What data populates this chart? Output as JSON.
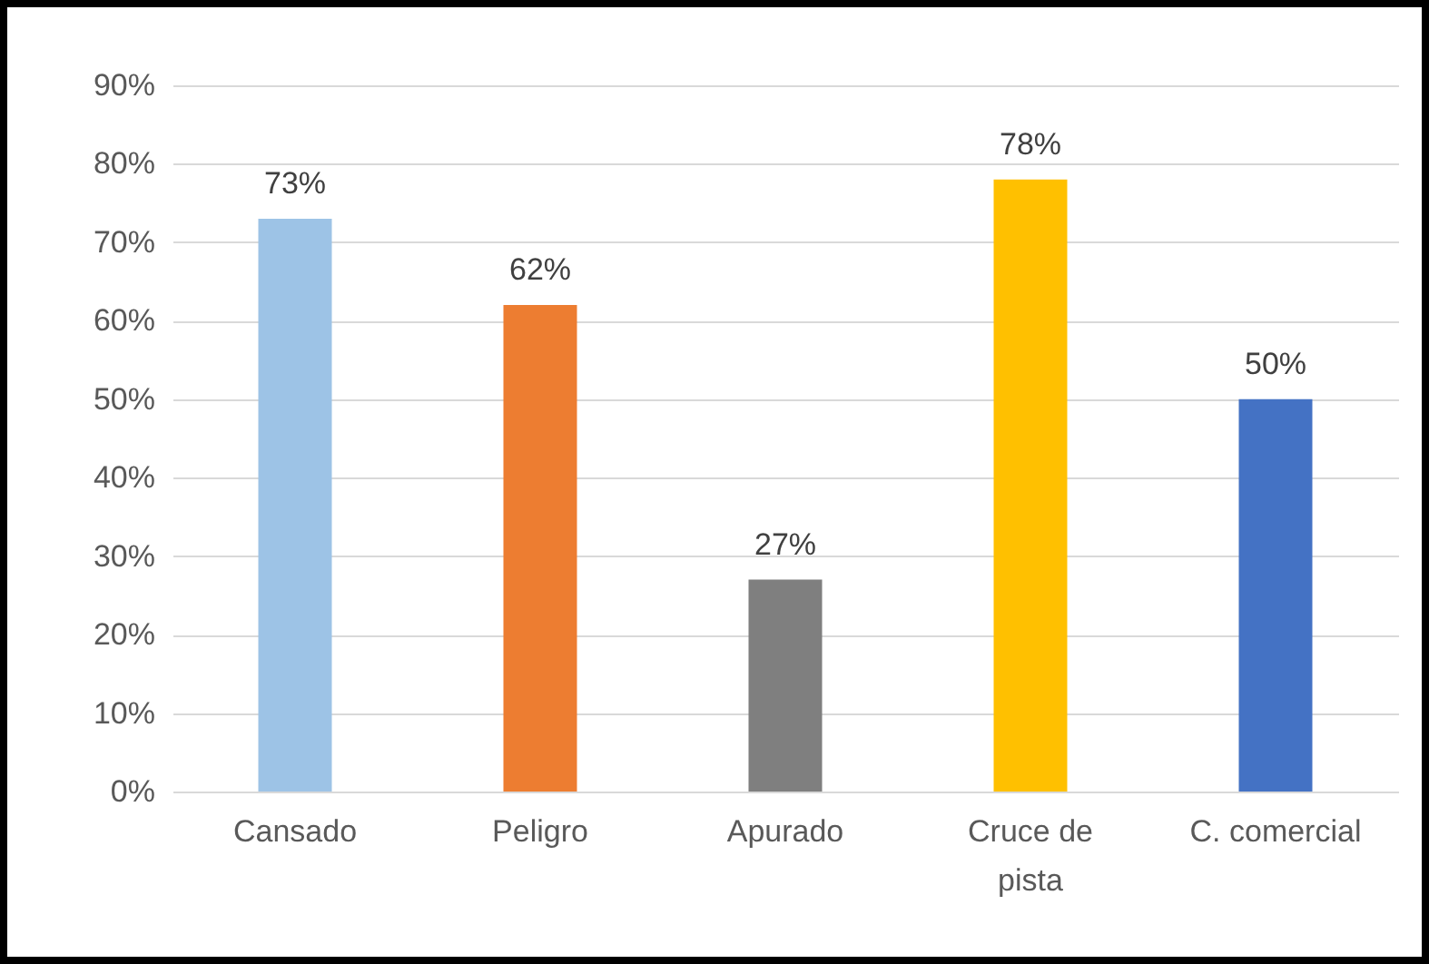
{
  "chart_data": {
    "type": "bar",
    "categories": [
      "Cansado",
      "Peligro",
      "Apurado",
      "Cruce de pista",
      "C. comercial"
    ],
    "values": [
      73,
      62,
      27,
      78,
      50
    ],
    "colors": [
      "#9dc3e6",
      "#ed7d31",
      "#7f7f7f",
      "#ffc000",
      "#4472c4"
    ],
    "value_labels": [
      "73%",
      "62%",
      "27%",
      "78%",
      "50%"
    ],
    "ylim": [
      0,
      90
    ],
    "yticks": [
      {
        "value": 0,
        "label": "0%"
      },
      {
        "value": 10,
        "label": "10%"
      },
      {
        "value": 20,
        "label": "20%"
      },
      {
        "value": 30,
        "label": "30%"
      },
      {
        "value": 40,
        "label": "40%"
      },
      {
        "value": 50,
        "label": "50%"
      },
      {
        "value": 60,
        "label": "60%"
      },
      {
        "value": 70,
        "label": "70%"
      },
      {
        "value": 80,
        "label": "80%"
      },
      {
        "value": 90,
        "label": "90%"
      }
    ],
    "grid": "y"
  }
}
